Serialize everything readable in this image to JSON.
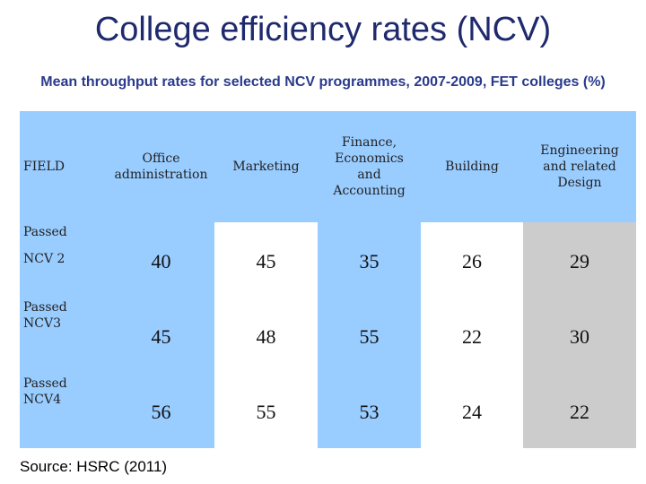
{
  "title": "College efficiency rates (NCV)",
  "subtitle": "Mean throughput rates for  selected NCV programmes, 2007-2009, FET colleges (%)",
  "table": {
    "field_label": "FIELD",
    "passed_label": "Passed",
    "columns": [
      "Office administration",
      "Marketing",
      "Finance, Economics and Accounting",
      "Building",
      "Engineering and related Design"
    ],
    "rows": [
      {
        "label": "NCV 2",
        "values": [
          "40",
          "45",
          "35",
          "26",
          "29"
        ]
      },
      {
        "label": "Passed NCV3",
        "values": [
          "45",
          "48",
          "55",
          "22",
          "30"
        ]
      },
      {
        "label": "Passed NCV4",
        "values": [
          "56",
          "55",
          "53",
          "24",
          "22"
        ]
      }
    ]
  },
  "source": "Source: HSRC (2011)",
  "colors": {
    "header": "#99ccff",
    "white_col": "#ffffff",
    "grey_col": "#cccccc",
    "title": "#1f2a6e"
  }
}
